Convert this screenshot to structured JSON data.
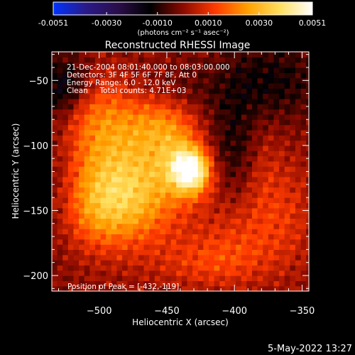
{
  "chart_data": {
    "type": "heatmap",
    "title": "Reconstructed RHESSI Image",
    "xlabel": "Heliocentric X (arcsec)",
    "ylabel": "Heliocentric Y (arcsec)",
    "xlim": [
      -535,
      -345
    ],
    "ylim": [
      -212,
      -28
    ],
    "xticks": [
      -500,
      -450,
      -400,
      -350
    ],
    "yticks": [
      -50,
      -100,
      -150,
      -200
    ],
    "colorbar": {
      "range": [
        -0.0051,
        0.0051
      ],
      "ticks": [
        "-0.0051",
        "-0.0030",
        "-0.0010",
        "0.0010",
        "0.0030",
        "0.0051"
      ],
      "tick_values": [
        -0.0051,
        -0.003,
        -0.001,
        0.001,
        0.003,
        0.0051
      ],
      "unit": "(photons cm⁻² s⁻¹ asec⁻²)",
      "stops": [
        "#0033ff",
        "#2a1a8a",
        "#2a0e4a",
        "#000000",
        "#8a0a00",
        "#ff3a00",
        "#ffa000",
        "#ffe060",
        "#ffffff"
      ]
    },
    "info": [
      "21-Dec-2004 08:01:40.000 to 08:03:00.000",
      "Detectors: 3F 4F 5F 6F 7F 8F, Att 0",
      "Energy Range: 6.0 - 12.0 keV",
      "Clean     Total counts: 4.71E+03"
    ],
    "peak_label": "Position of Peak = [-432,-119]",
    "peak": {
      "x": -432,
      "y": -119,
      "value": 0.0051
    },
    "grid": false,
    "features": [
      {
        "x": -432,
        "y": -119,
        "sx": 10,
        "sy": 12,
        "amp": 0.0048
      },
      {
        "x": -445,
        "y": -105,
        "sx": 14,
        "sy": 20,
        "amp": 0.0014
      },
      {
        "x": -490,
        "y": -105,
        "sx": 26,
        "sy": 30,
        "amp": 0.002
      },
      {
        "x": -470,
        "y": -140,
        "sx": 26,
        "sy": 26,
        "amp": 0.002
      },
      {
        "x": -500,
        "y": -150,
        "sx": 20,
        "sy": 22,
        "amp": 0.0016
      },
      {
        "x": -455,
        "y": -80,
        "sx": 20,
        "sy": 16,
        "amp": 0.0013
      },
      {
        "x": -505,
        "y": -70,
        "sx": 18,
        "sy": 20,
        "amp": 0.001
      },
      {
        "x": -395,
        "y": -170,
        "sx": 22,
        "sy": 22,
        "amp": 0.0009
      },
      {
        "x": -420,
        "y": -190,
        "sx": 28,
        "sy": 14,
        "amp": 0.001
      },
      {
        "x": -360,
        "y": -150,
        "sx": 14,
        "sy": 30,
        "amp": 0.0008
      },
      {
        "x": -380,
        "y": -120,
        "sx": 10,
        "sy": 30,
        "amp": 0.0007
      },
      {
        "x": -525,
        "y": -55,
        "sx": 14,
        "sy": 16,
        "amp": -0.0018
      },
      {
        "x": -375,
        "y": -50,
        "sx": 28,
        "sy": 22,
        "amp": -0.0012
      },
      {
        "x": -400,
        "y": -100,
        "sx": 14,
        "sy": 26,
        "amp": -0.001
      },
      {
        "x": -530,
        "y": -120,
        "sx": 10,
        "sy": 40,
        "amp": -0.0006
      },
      {
        "x": -445,
        "y": -60,
        "sx": 24,
        "sy": 14,
        "amp": -0.0006
      }
    ]
  },
  "footer": {
    "timestamp": "5-May-2022 13:27"
  }
}
